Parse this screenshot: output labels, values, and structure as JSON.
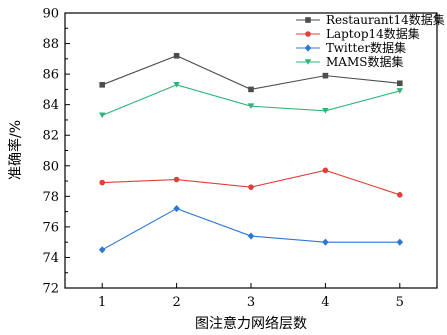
{
  "chart_data": {
    "type": "line",
    "xlabel": "图注意力网络层数",
    "ylabel": "准确率/%",
    "x": [
      1,
      2,
      3,
      4,
      5
    ],
    "xlim": [
      0.5,
      5.5
    ],
    "ylim": [
      72,
      90
    ],
    "yticks": [
      72,
      74,
      76,
      78,
      80,
      82,
      84,
      86,
      88,
      90
    ],
    "grid": false,
    "legend_position": "top-right",
    "series": [
      {
        "name": "Restaurant14数据集",
        "color": "#4d4d4d",
        "marker": "square",
        "values": [
          85.3,
          87.2,
          85.0,
          85.9,
          85.4
        ]
      },
      {
        "name": "Laptop14数据集",
        "color": "#e0403a",
        "marker": "circle",
        "values": [
          78.9,
          79.1,
          78.6,
          79.7,
          78.1
        ]
      },
      {
        "name": "Twitter数据集",
        "color": "#2b78d4",
        "marker": "diamond",
        "values": [
          74.5,
          77.2,
          75.4,
          75.0,
          75.0
        ]
      },
      {
        "name": "MAMS数据集",
        "color": "#2fb57a",
        "marker": "triangle-down",
        "values": [
          83.3,
          85.3,
          83.9,
          83.6,
          84.9
        ]
      }
    ]
  }
}
